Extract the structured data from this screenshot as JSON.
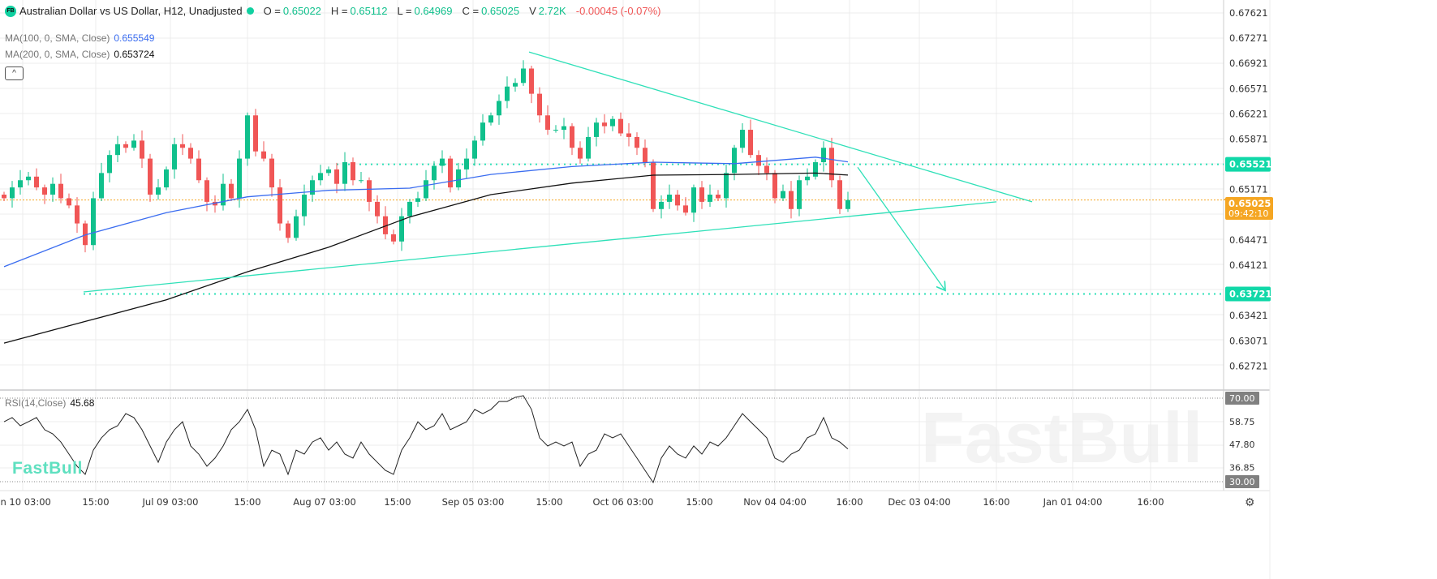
{
  "header": {
    "badge": "FB",
    "title": "Australian Dollar vs US Dollar, H12, Unadjusted",
    "open_label": "O =",
    "open": "0.65022",
    "high_label": "H =",
    "high": "0.65112",
    "low_label": "L =",
    "low": "0.64969",
    "close_label": "C =",
    "close": "0.65025",
    "volume_label": "V",
    "volume": "2.72K",
    "change": "-0.00045 (-0.07%)"
  },
  "indicators": {
    "ma100_label": "MA(100, 0, SMA, Close)",
    "ma100_value": "0.655549",
    "ma200_label": "MA(200, 0, SMA, Close)",
    "ma200_value": "0.653724",
    "collapse_icon": "^",
    "rsi_label": "RSI(14,Close)",
    "rsi_value": "45.68"
  },
  "branding": {
    "logo": "FastBull",
    "watermark": "FastBull"
  },
  "settings_icon": "⚙",
  "colors": {
    "up": "#10c08c",
    "down": "#f05656",
    "ma100": "#3b6df0",
    "ma200": "#111111",
    "drawing": "#2fe0b8",
    "last_price": "#f5a623",
    "grid": "#ececec"
  },
  "chart_data": {
    "type": "candlestick",
    "price_axis": {
      "ticks": [
        "0.67621",
        "0.67271",
        "0.66921",
        "0.66571",
        "0.66221",
        "0.65871",
        "0.65171",
        "0.64471",
        "0.64121",
        "0.63421",
        "0.63071",
        "0.62721"
      ],
      "range": [
        0.62721,
        0.67621
      ]
    },
    "price_tags": [
      {
        "text": "0.65521",
        "value": 0.65521,
        "color": "#10d8a8"
      },
      {
        "text": "0.63721",
        "value": 0.63721,
        "color": "#10d8a8"
      }
    ],
    "last_price": {
      "value": 0.65025,
      "text": "0.65025",
      "countdown": "09:42:10"
    },
    "time_axis": [
      "un 10 03:00",
      "15:00",
      "Jul 09 03:00",
      "15:00",
      "Aug 07 03:00",
      "15:00",
      "Sep 05 03:00",
      "15:00",
      "Oct 06 03:00",
      "15:00",
      "Nov 04 04:00",
      "16:00",
      "Dec 03 04:00",
      "16:00",
      "Jan 01 04:00",
      "16:00"
    ],
    "closes": [
      0.6505,
      0.652,
      0.653,
      0.6535,
      0.652,
      0.651,
      0.6525,
      0.6505,
      0.6495,
      0.647,
      0.644,
      0.6505,
      0.654,
      0.6565,
      0.658,
      0.6575,
      0.6585,
      0.656,
      0.651,
      0.652,
      0.6545,
      0.658,
      0.6575,
      0.656,
      0.653,
      0.65,
      0.6495,
      0.6525,
      0.6505,
      0.656,
      0.662,
      0.657,
      0.656,
      0.652,
      0.647,
      0.645,
      0.648,
      0.651,
      0.653,
      0.654,
      0.6545,
      0.6525,
      0.6555,
      0.653,
      0.653,
      0.65,
      0.648,
      0.6455,
      0.6445,
      0.648,
      0.65,
      0.6505,
      0.653,
      0.655,
      0.656,
      0.652,
      0.6545,
      0.656,
      0.6585,
      0.661,
      0.662,
      0.664,
      0.666,
      0.6665,
      0.6685,
      0.665,
      0.662,
      0.66,
      0.66,
      0.6605,
      0.6575,
      0.656,
      0.659,
      0.661,
      0.6605,
      0.6615,
      0.6595,
      0.659,
      0.6575,
      0.6555,
      0.649,
      0.65,
      0.651,
      0.6495,
      0.6485,
      0.652,
      0.65,
      0.651,
      0.6505,
      0.654,
      0.6575,
      0.66,
      0.6565,
      0.655,
      0.654,
      0.6505,
      0.6515,
      0.649,
      0.653,
      0.6535,
      0.6555,
      0.6575,
      0.653,
      0.649,
      0.65025
    ],
    "ma100": [
      0.641,
      0.6454,
      0.6485,
      0.6507,
      0.6516,
      0.6519,
      0.6538,
      0.6549,
      0.6555,
      0.6553,
      0.6562,
      0.65555
    ],
    "ma200": [
      0.6304,
      0.6334,
      0.6364,
      0.6403,
      0.6437,
      0.6479,
      0.651,
      0.6526,
      0.6537,
      0.6538,
      0.654,
      0.65372
    ],
    "rsi": {
      "levels": [
        "70.00",
        "58.75",
        "47.80",
        "36.85",
        "30.00"
      ],
      "values": [
        58.7,
        60.7,
        56.8,
        58.7,
        60.7,
        54.9,
        52.9,
        49.0,
        43.2,
        37.4,
        33.5,
        45.1,
        51.0,
        54.9,
        56.8,
        62.6,
        60.7,
        54.9,
        47.1,
        39.3,
        49.0,
        54.9,
        58.7,
        47.1,
        43.2,
        37.4,
        41.3,
        47.1,
        54.9,
        58.7,
        64.6,
        54.9,
        37.4,
        45.1,
        43.2,
        33.5,
        45.1,
        43.2,
        49.0,
        51.0,
        45.1,
        49.0,
        43.2,
        41.3,
        49.0,
        43.2,
        39.3,
        35.4,
        33.5,
        45.1,
        51.0,
        58.7,
        54.9,
        56.8,
        62.6,
        54.9,
        56.8,
        58.7,
        64.6,
        62.6,
        64.6,
        68.4,
        68.4,
        70.4,
        71.2,
        64.6,
        51.0,
        47.1,
        49.0,
        47.1,
        49.0,
        37.4,
        43.2,
        45.1,
        52.9,
        51.0,
        52.9,
        47.1,
        41.3,
        35.4,
        29.6,
        41.3,
        47.1,
        43.2,
        41.3,
        47.1,
        43.2,
        49.0,
        47.1,
        51.0,
        56.8,
        62.6,
        58.7,
        54.9,
        51.0,
        41.3,
        39.3,
        43.2,
        45.1,
        51.0,
        52.9,
        60.7,
        51.0,
        49.0,
        45.68
      ]
    },
    "drawings": [
      {
        "type": "trendline",
        "from": [
          64.7,
          0.6708
        ],
        "to": [
          126.7,
          0.65
        ]
      },
      {
        "type": "trendline",
        "from": [
          9.8,
          0.6375
        ],
        "to": [
          122.3,
          0.65
        ]
      },
      {
        "type": "arrow",
        "from": [
          105.2,
          0.6548
        ],
        "to": [
          116.0,
          0.6377
        ]
      },
      {
        "type": "hline",
        "from_index": 41,
        "price": 0.65521
      },
      {
        "type": "hline",
        "from_index": 9.8,
        "price": 0.63721
      }
    ]
  }
}
